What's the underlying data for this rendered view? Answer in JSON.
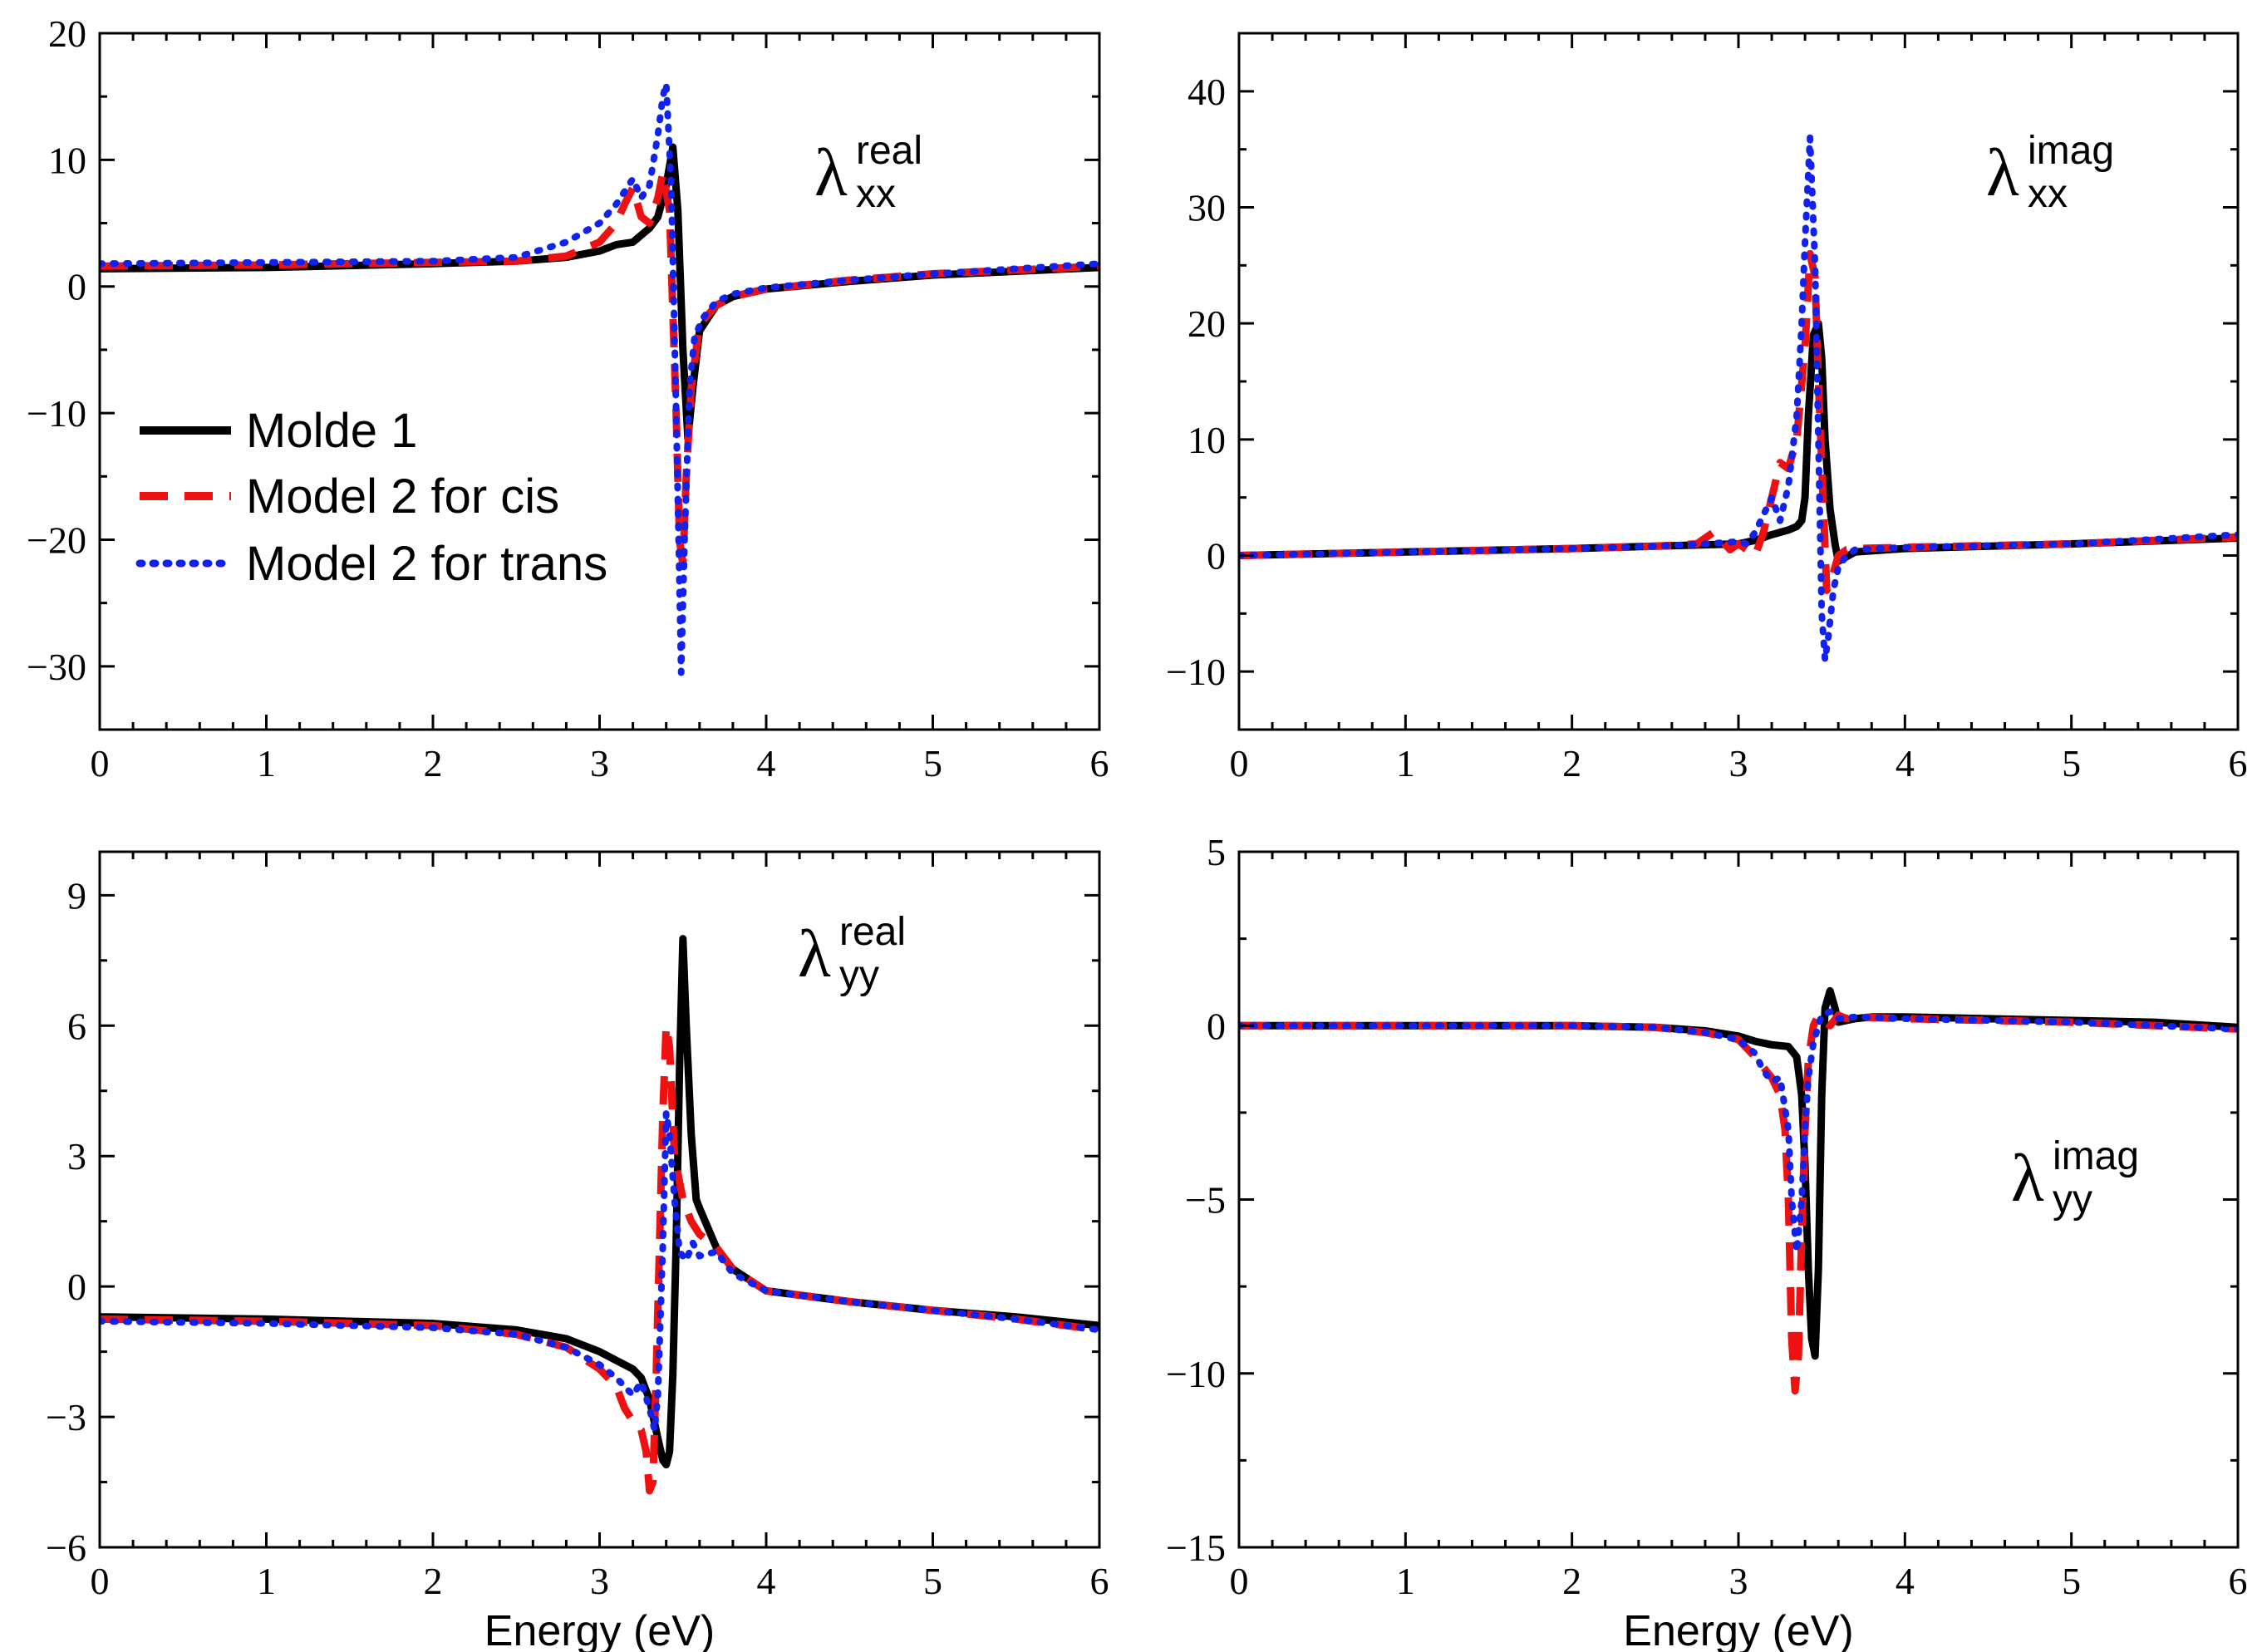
{
  "figure": {
    "xlabel": "Energy (eV)",
    "legend": [
      {
        "label": "Molde 1",
        "series": 0
      },
      {
        "label": "Model 2 for cis",
        "series": 1
      },
      {
        "label": "Model 2 for trans",
        "series": 2
      }
    ],
    "series_styles": [
      {
        "color": "#000000",
        "style": "solid"
      },
      {
        "color": "#ee1111",
        "style": "dashed"
      },
      {
        "color": "#1122ee",
        "style": "dotted"
      }
    ]
  },
  "chart_data": [
    {
      "type": "line",
      "symbol": "λ",
      "sub": "xx",
      "sup": "real",
      "xlim": [
        0,
        6
      ],
      "ylim": [
        -35,
        20
      ],
      "xticks": [
        0,
        1,
        2,
        3,
        4,
        5,
        6
      ],
      "yticks": [
        20,
        10,
        0,
        -10,
        -20,
        -30
      ],
      "xlabel": "",
      "series": [
        {
          "name": "Molde 1",
          "x": [
            0,
            1,
            2,
            2.5,
            2.8,
            3.0,
            3.1,
            3.2,
            3.3,
            3.35,
            3.4,
            3.44,
            3.47,
            3.5,
            3.53,
            3.56,
            3.6,
            3.7,
            3.8,
            4.0,
            4.5,
            5.0,
            6.0
          ],
          "y": [
            1.4,
            1.5,
            1.8,
            2.0,
            2.3,
            2.8,
            3.3,
            3.5,
            4.6,
            5.5,
            8.0,
            11.0,
            6.0,
            -5.0,
            -12.0,
            -8.0,
            -3.5,
            -1.5,
            -0.8,
            -0.2,
            0.4,
            0.9,
            1.5
          ]
        },
        {
          "name": "Model 2 for cis",
          "x": [
            0,
            1,
            2,
            2.5,
            2.8,
            3.0,
            3.1,
            3.15,
            3.2,
            3.25,
            3.3,
            3.35,
            3.38,
            3.42,
            3.46,
            3.48,
            3.5,
            3.52,
            3.55,
            3.6,
            3.7,
            3.8,
            4.0,
            4.5,
            5.0,
            6.0
          ],
          "y": [
            1.6,
            1.7,
            1.9,
            2.0,
            2.4,
            3.5,
            5.0,
            6.5,
            7.8,
            5.5,
            5.0,
            7.0,
            9.0,
            6.0,
            -10.0,
            -20.0,
            -22.0,
            -15.0,
            -8.0,
            -3.0,
            -1.5,
            -0.8,
            -0.2,
            0.5,
            1.0,
            1.6
          ]
        },
        {
          "name": "Model 2 for trans",
          "x": [
            0,
            1,
            2,
            2.5,
            2.8,
            3.0,
            3.1,
            3.2,
            3.25,
            3.3,
            3.35,
            3.38,
            3.4,
            3.43,
            3.46,
            3.49,
            3.51,
            3.54,
            3.57,
            3.62,
            3.7,
            3.8,
            4.0,
            4.5,
            5.0,
            6.0
          ],
          "y": [
            1.8,
            1.9,
            2.0,
            2.3,
            3.5,
            5.0,
            6.5,
            8.5,
            7.0,
            8.0,
            12.0,
            15.0,
            16.0,
            8.0,
            -10.0,
            -30.5,
            -20.0,
            -8.0,
            -4.0,
            -2.5,
            -1.2,
            -0.6,
            -0.1,
            0.5,
            1.0,
            1.8
          ]
        }
      ]
    },
    {
      "type": "line",
      "symbol": "λ",
      "sub": "xx",
      "sup": "imag",
      "xlim": [
        0,
        6
      ],
      "ylim": [
        -15,
        45
      ],
      "xticks": [
        0,
        1,
        2,
        3,
        4,
        5,
        6
      ],
      "yticks": [
        40,
        30,
        20,
        10,
        0,
        -10
      ],
      "xlabel": "",
      "series": [
        {
          "name": "Molde 1",
          "x": [
            0,
            1,
            2,
            2.5,
            3.0,
            3.1,
            3.2,
            3.3,
            3.35,
            3.38,
            3.4,
            3.42,
            3.45,
            3.48,
            3.5,
            3.52,
            3.55,
            3.58,
            3.6,
            3.7,
            4.0,
            4.5,
            5.0,
            6.0
          ],
          "y": [
            0.0,
            0.3,
            0.6,
            0.8,
            1.0,
            1.3,
            1.8,
            2.2,
            2.5,
            3.0,
            5.0,
            12.0,
            19.0,
            20.0,
            17.0,
            10.0,
            4.0,
            1.0,
            -0.5,
            0.3,
            0.6,
            0.8,
            1.0,
            1.5
          ]
        },
        {
          "name": "Model 2 for cis",
          "x": [
            0,
            1,
            2,
            2.5,
            2.75,
            2.85,
            2.95,
            3.0,
            3.05,
            3.1,
            3.15,
            3.2,
            3.25,
            3.3,
            3.35,
            3.4,
            3.43,
            3.46,
            3.48,
            3.5,
            3.53,
            3.56,
            3.6,
            3.65,
            3.7,
            4.0,
            5.0,
            6.0
          ],
          "y": [
            0.0,
            0.3,
            0.6,
            0.8,
            1.0,
            2.0,
            0.5,
            1.0,
            0.5,
            0.0,
            2.0,
            5.0,
            8.0,
            7.5,
            10.0,
            18.0,
            26.0,
            24.0,
            15.0,
            8.0,
            -3.0,
            -2.0,
            0.0,
            0.5,
            0.6,
            0.7,
            1.0,
            1.6
          ]
        },
        {
          "name": "Model 2 for trans",
          "x": [
            0,
            1,
            2,
            2.5,
            2.8,
            3.0,
            3.05,
            3.1,
            3.15,
            3.2,
            3.25,
            3.3,
            3.35,
            3.38,
            3.4,
            3.43,
            3.46,
            3.48,
            3.5,
            3.52,
            3.54,
            3.57,
            3.6,
            3.65,
            3.7,
            4.0,
            5.0,
            6.0
          ],
          "y": [
            0.0,
            0.3,
            0.6,
            0.8,
            1.0,
            1.2,
            1.0,
            2.0,
            3.5,
            5.0,
            3.0,
            6.0,
            12.0,
            20.0,
            27.0,
            36.0,
            25.0,
            10.0,
            -5.0,
            -9.0,
            -7.0,
            -3.0,
            -1.0,
            0.0,
            0.5,
            0.7,
            1.0,
            1.8
          ]
        }
      ]
    },
    {
      "type": "line",
      "symbol": "λ",
      "sub": "yy",
      "sup": "real",
      "xlim": [
        0,
        6
      ],
      "ylim": [
        -6,
        10
      ],
      "xticks": [
        0,
        1,
        2,
        3,
        4,
        5,
        6
      ],
      "yticks": [
        9,
        6,
        3,
        0,
        -3,
        -6
      ],
      "xlabel": "Energy (eV)",
      "series": [
        {
          "name": "Molde 1",
          "x": [
            0,
            1,
            2,
            2.5,
            2.8,
            3.0,
            3.1,
            3.2,
            3.25,
            3.3,
            3.35,
            3.38,
            3.4,
            3.42,
            3.44,
            3.46,
            3.48,
            3.5,
            3.52,
            3.55,
            3.58,
            3.6,
            3.7,
            3.8,
            4.0,
            4.5,
            5.0,
            5.5,
            6.0
          ],
          "y": [
            -0.7,
            -0.75,
            -0.85,
            -1.0,
            -1.2,
            -1.5,
            -1.7,
            -1.9,
            -2.1,
            -2.6,
            -3.5,
            -4.0,
            -4.1,
            -3.8,
            -2.0,
            1.0,
            5.0,
            8.0,
            6.0,
            3.5,
            2.0,
            1.8,
            0.9,
            0.4,
            -0.1,
            -0.35,
            -0.55,
            -0.7,
            -0.9
          ]
        },
        {
          "name": "Model 2 for cis",
          "x": [
            0,
            1,
            2,
            2.5,
            2.8,
            3.0,
            3.1,
            3.15,
            3.2,
            3.25,
            3.28,
            3.3,
            3.32,
            3.34,
            3.36,
            3.38,
            3.4,
            3.42,
            3.45,
            3.5,
            3.55,
            3.6,
            3.7,
            3.8,
            4.0,
            4.5,
            5.0,
            5.5,
            6.0
          ],
          "y": [
            -0.75,
            -0.8,
            -0.9,
            -1.1,
            -1.4,
            -1.9,
            -2.3,
            -2.8,
            -3.1,
            -3.3,
            -3.8,
            -4.7,
            -4.5,
            -2.0,
            1.0,
            4.0,
            6.0,
            5.5,
            3.0,
            2.0,
            1.5,
            1.2,
            0.9,
            0.4,
            -0.1,
            -0.35,
            -0.55,
            -0.75,
            -1.0
          ]
        },
        {
          "name": "Model 2 for trans",
          "x": [
            0,
            1,
            2,
            2.5,
            2.8,
            3.0,
            3.1,
            3.15,
            3.2,
            3.25,
            3.3,
            3.33,
            3.35,
            3.38,
            3.4,
            3.42,
            3.45,
            3.48,
            3.52,
            3.56,
            3.6,
            3.7,
            3.8,
            4.0,
            4.5,
            5.0,
            5.5,
            6.0
          ],
          "y": [
            -0.8,
            -0.85,
            -0.95,
            -1.1,
            -1.4,
            -1.8,
            -2.1,
            -2.3,
            -2.5,
            -2.2,
            -2.8,
            -3.3,
            -2.5,
            1.0,
            4.0,
            3.5,
            2.0,
            0.8,
            0.6,
            1.0,
            0.7,
            0.8,
            0.3,
            -0.1,
            -0.35,
            -0.55,
            -0.75,
            -1.0
          ]
        }
      ]
    },
    {
      "type": "line",
      "symbol": "λ",
      "sub": "yy",
      "sup": "imag",
      "xlim": [
        0,
        6
      ],
      "ylim": [
        -15,
        5
      ],
      "xticks": [
        0,
        1,
        2,
        3,
        4,
        5,
        6
      ],
      "yticks": [
        5,
        0,
        -5,
        -10,
        -15
      ],
      "xlabel": "Energy (eV)",
      "series": [
        {
          "name": "Molde 1",
          "x": [
            0,
            1,
            2,
            2.5,
            2.8,
            3.0,
            3.1,
            3.2,
            3.3,
            3.35,
            3.38,
            3.4,
            3.42,
            3.44,
            3.46,
            3.48,
            3.5,
            3.52,
            3.55,
            3.58,
            3.6,
            3.7,
            3.8,
            4.0,
            4.5,
            5.0,
            5.5,
            6.0
          ],
          "y": [
            0.0,
            0.0,
            0.0,
            -0.05,
            -0.15,
            -0.3,
            -0.45,
            -0.55,
            -0.6,
            -0.9,
            -2.0,
            -4.0,
            -7.0,
            -9.0,
            -9.5,
            -7.0,
            -2.0,
            0.5,
            1.0,
            0.5,
            0.1,
            0.2,
            0.25,
            0.25,
            0.2,
            0.15,
            0.1,
            -0.05
          ]
        },
        {
          "name": "Model 2 for cis",
          "x": [
            0,
            1,
            2,
            2.5,
            2.8,
            3.0,
            3.1,
            3.15,
            3.2,
            3.25,
            3.28,
            3.3,
            3.32,
            3.34,
            3.36,
            3.38,
            3.4,
            3.42,
            3.45,
            3.48,
            3.5,
            3.55,
            3.6,
            3.65,
            3.7,
            4.0,
            5.0,
            6.0
          ],
          "y": [
            0.0,
            0.0,
            0.0,
            -0.05,
            -0.2,
            -0.4,
            -0.9,
            -1.2,
            -1.5,
            -2.0,
            -3.0,
            -5.0,
            -9.0,
            -10.5,
            -9.5,
            -6.0,
            -3.0,
            -1.0,
            0.0,
            0.3,
            0.2,
            0.0,
            0.3,
            0.2,
            0.25,
            0.2,
            0.1,
            -0.1
          ]
        },
        {
          "name": "Model 2 for trans",
          "x": [
            0,
            1,
            2,
            2.5,
            2.8,
            3.0,
            3.1,
            3.15,
            3.2,
            3.25,
            3.3,
            3.32,
            3.35,
            3.38,
            3.4,
            3.42,
            3.45,
            3.48,
            3.5,
            3.55,
            3.6,
            3.7,
            4.0,
            5.0,
            6.0
          ],
          "y": [
            0.0,
            0.0,
            0.0,
            -0.05,
            -0.2,
            -0.4,
            -0.8,
            -1.3,
            -1.6,
            -1.5,
            -3.0,
            -5.0,
            -6.5,
            -5.0,
            -3.0,
            -1.5,
            -0.5,
            0.0,
            0.3,
            0.4,
            0.2,
            0.25,
            0.2,
            0.1,
            -0.1
          ]
        }
      ]
    }
  ]
}
